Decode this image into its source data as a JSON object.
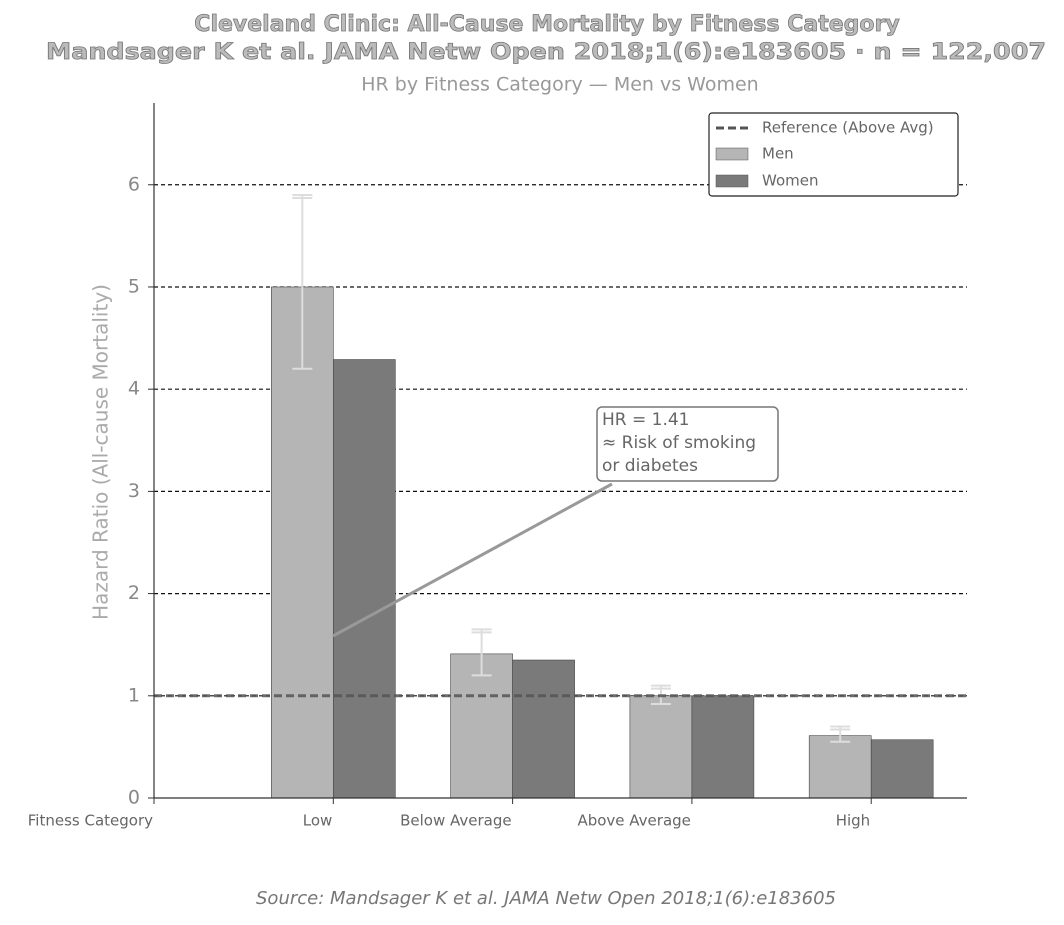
{
  "chart_data": {
    "type": "bar",
    "title": [
      "Cleveland Clinic: All-Cause Mortality by Fitness Category",
      "Mandsager K et al. JAMA Netw Open 2018;1(6):e183605  ·  n = 122,007"
    ],
    "subtitle": "HR by Fitness Category — Men vs Women",
    "y_label": "Hazard Ratio (All-cause Mortality)",
    "source": "Source: Mandsager K et al. JAMA Netw Open 2018;1(6):e183605",
    "categories": [
      "Fitness Category",
      "Low",
      "Below Average",
      "Above Average",
      "High"
    ],
    "series": [
      {
        "name": "Men",
        "color": "#b5b5b5",
        "values": [
          null,
          5.0,
          1.41,
          1.0,
          0.61
        ],
        "ci_low": [
          null,
          4.2,
          1.2,
          0.92,
          0.55
        ],
        "ci_high": [
          null,
          5.9,
          1.65,
          1.1,
          0.7
        ]
      },
      {
        "name": "Women",
        "color": "#7a7a7a",
        "values": [
          null,
          4.29,
          1.35,
          1.0,
          0.57
        ]
      }
    ],
    "reference_line": {
      "name": "Reference (Above Avg)",
      "value": 1
    },
    "annotation": [
      "HR = 1.41",
      "≈ Risk of smoking",
      "or diabetes"
    ],
    "ylim": [
      0,
      6.8
    ],
    "yticks": [
      0,
      1,
      2,
      3,
      4,
      5,
      6
    ],
    "grid": true,
    "legend": "upper right"
  }
}
